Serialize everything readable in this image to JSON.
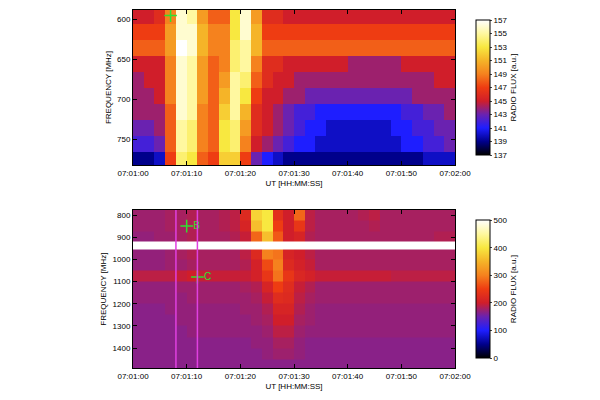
{
  "chart_data": [
    {
      "type": "heatmap",
      "xlabel": "UT [HH:MM:SS]",
      "ylabel": "FREQUENCY [MHz]",
      "xlim": [
        "07:01:00",
        "07:02:00"
      ],
      "xticks": [
        "07:01:00",
        "07:01:10",
        "07:01:20",
        "07:01:30",
        "07:01:40",
        "07:01:50",
        "07:02:00"
      ],
      "ylim": [
        782,
        588
      ],
      "yticks": [
        600,
        650,
        700,
        750
      ],
      "x": [
        "07:01:01",
        "07:01:03",
        "07:01:05",
        "07:01:07",
        "07:01:09",
        "07:01:11",
        "07:01:13",
        "07:01:15",
        "07:01:17",
        "07:01:19",
        "07:01:21",
        "07:01:23",
        "07:01:25",
        "07:01:27",
        "07:01:29",
        "07:01:31",
        "07:01:33",
        "07:01:35",
        "07:01:37",
        "07:01:39",
        "07:01:41",
        "07:01:43",
        "07:01:45",
        "07:01:47",
        "07:01:49",
        "07:01:51",
        "07:01:53",
        "07:01:55",
        "07:01:57",
        "07:01:59"
      ],
      "y": [
        595,
        615,
        635,
        655,
        675,
        695,
        715,
        735,
        755,
        775
      ],
      "values": [
        [
          145,
          145,
          146,
          149,
          156,
          155,
          150,
          148,
          148,
          153,
          156,
          150,
          146,
          146,
          145,
          145,
          145,
          145,
          145,
          145,
          145,
          145,
          145,
          145,
          145,
          145,
          145,
          145,
          145,
          145
        ],
        [
          147,
          147,
          147,
          150,
          156,
          156,
          151,
          149,
          149,
          153,
          156,
          151,
          147,
          147,
          147,
          147,
          147,
          147,
          147,
          147,
          147,
          147,
          147,
          147,
          147,
          147,
          147,
          147,
          147,
          147
        ],
        [
          148,
          148,
          148,
          150,
          157,
          156,
          151,
          149,
          149,
          154,
          155,
          151,
          148,
          148,
          148,
          148,
          148,
          148,
          148,
          148,
          148,
          148,
          148,
          148,
          148,
          148,
          148,
          148,
          148,
          148
        ],
        [
          145,
          145,
          145,
          149,
          156,
          155,
          150,
          148,
          149,
          154,
          155,
          149,
          146,
          146,
          145,
          145,
          145,
          145,
          145,
          145,
          144,
          144,
          144,
          144,
          144,
          145,
          145,
          145,
          145,
          145
        ],
        [
          144,
          145,
          145,
          149,
          156,
          155,
          150,
          148,
          150,
          155,
          154,
          148,
          146,
          145,
          145,
          144,
          144,
          144,
          144,
          144,
          144,
          144,
          144,
          144,
          144,
          144,
          144,
          144,
          145,
          145
        ],
        [
          144,
          144,
          145,
          149,
          156,
          155,
          150,
          148,
          151,
          155,
          153,
          147,
          145,
          145,
          144,
          144,
          143,
          143,
          143,
          143,
          143,
          143,
          143,
          143,
          143,
          143,
          144,
          144,
          144,
          144
        ],
        [
          144,
          144,
          144,
          148,
          156,
          155,
          149,
          148,
          152,
          155,
          151,
          146,
          145,
          144,
          143,
          142,
          142,
          141,
          141,
          141,
          141,
          141,
          141,
          141,
          141,
          142,
          142,
          143,
          143,
          144
        ],
        [
          143,
          143,
          144,
          148,
          155,
          154,
          149,
          148,
          153,
          154,
          150,
          146,
          145,
          144,
          143,
          142,
          141,
          141,
          140,
          140,
          140,
          140,
          140,
          140,
          141,
          141,
          142,
          142,
          143,
          143
        ],
        [
          142,
          142,
          143,
          148,
          155,
          154,
          149,
          148,
          153,
          154,
          149,
          145,
          144,
          143,
          142,
          141,
          141,
          140,
          140,
          140,
          140,
          140,
          140,
          140,
          140,
          141,
          141,
          142,
          142,
          143
        ],
        [
          139,
          139,
          140,
          147,
          154,
          153,
          148,
          147,
          152,
          152,
          147,
          143,
          141,
          140,
          139,
          139,
          139,
          139,
          139,
          139,
          139,
          139,
          139,
          139,
          139,
          139,
          139,
          140,
          140,
          140
        ]
      ],
      "colorbar": {
        "title": "RADIO FLUX [a.u.]",
        "range": [
          137,
          157
        ],
        "ticks": [
          137,
          139,
          141,
          143,
          145,
          147,
          149,
          151,
          153,
          155,
          157
        ]
      },
      "markers": [
        {
          "x": "07:01:07",
          "y": 595,
          "color": "#30e030"
        }
      ]
    },
    {
      "type": "heatmap",
      "xlabel": "UT [HH:MM:SS]",
      "ylabel": "FREQUENCY [MHz]",
      "xlim": [
        "07:01:00",
        "07:02:00"
      ],
      "xticks": [
        "07:01:00",
        "07:01:10",
        "07:01:20",
        "07:01:30",
        "07:01:40",
        "07:01:50",
        "07:02:00"
      ],
      "ylim": [
        1490,
        778
      ],
      "yticks": [
        800,
        900,
        1000,
        1100,
        1200,
        1300,
        1400
      ],
      "x": [
        "07:01:01",
        "07:01:03",
        "07:01:05",
        "07:01:07",
        "07:01:09",
        "07:01:11",
        "07:01:13",
        "07:01:15",
        "07:01:17",
        "07:01:19",
        "07:01:21",
        "07:01:23",
        "07:01:25",
        "07:01:27",
        "07:01:29",
        "07:01:31",
        "07:01:33",
        "07:01:35",
        "07:01:37",
        "07:01:39",
        "07:01:41",
        "07:01:43",
        "07:01:45",
        "07:01:47",
        "07:01:49",
        "07:01:51",
        "07:01:53",
        "07:01:55",
        "07:01:57",
        "07:01:59"
      ],
      "y": [
        800,
        850,
        900,
        937,
        975,
        1025,
        1075,
        1125,
        1175,
        1225,
        1275,
        1325,
        1375,
        1425,
        1475
      ],
      "values": [
        [
          175,
          175,
          175,
          180,
          180,
          185,
          180,
          180,
          185,
          190,
          220,
          380,
          400,
          230,
          200,
          280,
          190,
          180,
          180,
          180,
          180,
          185,
          190,
          180,
          180,
          180,
          180,
          180,
          180,
          180
        ],
        [
          175,
          175,
          175,
          180,
          180,
          185,
          180,
          180,
          185,
          190,
          210,
          360,
          400,
          250,
          200,
          240,
          190,
          180,
          180,
          180,
          180,
          180,
          185,
          180,
          180,
          180,
          180,
          180,
          180,
          180
        ],
        [
          170,
          170,
          175,
          175,
          180,
          185,
          180,
          180,
          180,
          185,
          195,
          280,
          360,
          270,
          200,
          210,
          185,
          180,
          180,
          180,
          180,
          180,
          180,
          180,
          180,
          180,
          180,
          180,
          185,
          185
        ],
        [
          null,
          null,
          null,
          null,
          null,
          null,
          null,
          null,
          null,
          null,
          null,
          null,
          null,
          null,
          null,
          null,
          null,
          null,
          null,
          null,
          null,
          null,
          null,
          null,
          null,
          null,
          null,
          null,
          null,
          null
        ],
        [
          170,
          170,
          170,
          175,
          180,
          185,
          180,
          180,
          180,
          180,
          190,
          220,
          300,
          290,
          210,
          200,
          190,
          180,
          180,
          180,
          180,
          180,
          180,
          180,
          180,
          180,
          180,
          180,
          180,
          180
        ],
        [
          170,
          170,
          170,
          175,
          175,
          180,
          180,
          180,
          180,
          180,
          185,
          205,
          260,
          300,
          220,
          205,
          195,
          180,
          180,
          180,
          180,
          180,
          180,
          180,
          180,
          180,
          180,
          180,
          180,
          180
        ],
        [
          190,
          190,
          190,
          190,
          195,
          200,
          195,
          195,
          195,
          195,
          195,
          205,
          240,
          290,
          240,
          215,
          205,
          195,
          195,
          195,
          195,
          195,
          195,
          195,
          190,
          190,
          190,
          190,
          190,
          190
        ],
        [
          170,
          170,
          170,
          170,
          175,
          175,
          175,
          175,
          175,
          175,
          180,
          185,
          210,
          250,
          225,
          195,
          185,
          175,
          175,
          175,
          175,
          175,
          175,
          175,
          175,
          175,
          175,
          175,
          175,
          175
        ],
        [
          170,
          170,
          170,
          170,
          170,
          175,
          175,
          175,
          175,
          175,
          175,
          180,
          195,
          225,
          220,
          190,
          180,
          175,
          175,
          175,
          175,
          175,
          175,
          175,
          175,
          175,
          175,
          175,
          175,
          175
        ],
        [
          165,
          165,
          165,
          170,
          170,
          170,
          170,
          170,
          170,
          170,
          175,
          175,
          185,
          210,
          210,
          185,
          175,
          170,
          170,
          170,
          170,
          170,
          170,
          170,
          170,
          170,
          170,
          170,
          170,
          170
        ],
        [
          165,
          165,
          165,
          165,
          170,
          170,
          170,
          170,
          170,
          170,
          170,
          175,
          180,
          200,
          200,
          180,
          175,
          170,
          170,
          170,
          170,
          170,
          170,
          170,
          170,
          170,
          170,
          170,
          170,
          170
        ],
        [
          165,
          165,
          165,
          165,
          165,
          170,
          170,
          170,
          170,
          170,
          170,
          170,
          175,
          190,
          190,
          175,
          170,
          170,
          170,
          170,
          170,
          170,
          170,
          170,
          170,
          170,
          170,
          170,
          170,
          170
        ],
        [
          165,
          165,
          165,
          165,
          165,
          165,
          165,
          165,
          165,
          165,
          165,
          170,
          170,
          180,
          180,
          170,
          165,
          165,
          165,
          165,
          165,
          165,
          165,
          165,
          165,
          165,
          165,
          165,
          165,
          165
        ],
        [
          165,
          165,
          165,
          165,
          165,
          165,
          165,
          165,
          165,
          165,
          165,
          165,
          170,
          175,
          175,
          170,
          165,
          165,
          165,
          165,
          165,
          165,
          165,
          165,
          165,
          165,
          165,
          165,
          165,
          165
        ],
        [
          165,
          165,
          165,
          165,
          165,
          165,
          165,
          165,
          165,
          165,
          165,
          165,
          165,
          165,
          165,
          165,
          165,
          165,
          165,
          165,
          165,
          165,
          165,
          165,
          165,
          165,
          165,
          165,
          165,
          165
        ]
      ],
      "colorbar": {
        "title": "RADIO FLUX [a.u.]",
        "range": [
          0,
          500
        ],
        "ticks": [
          0,
          100,
          200,
          300,
          400,
          500
        ]
      },
      "markers": [
        {
          "x": "07:01:10",
          "y": 850,
          "label": "B",
          "color": "#30e030"
        },
        {
          "x": "07:01:12",
          "y": 1080,
          "label": "C",
          "color": "#30e030"
        }
      ],
      "vlines": {
        "x": [
          "07:01:08",
          "07:01:12"
        ],
        "color": "#e040e0"
      }
    }
  ]
}
